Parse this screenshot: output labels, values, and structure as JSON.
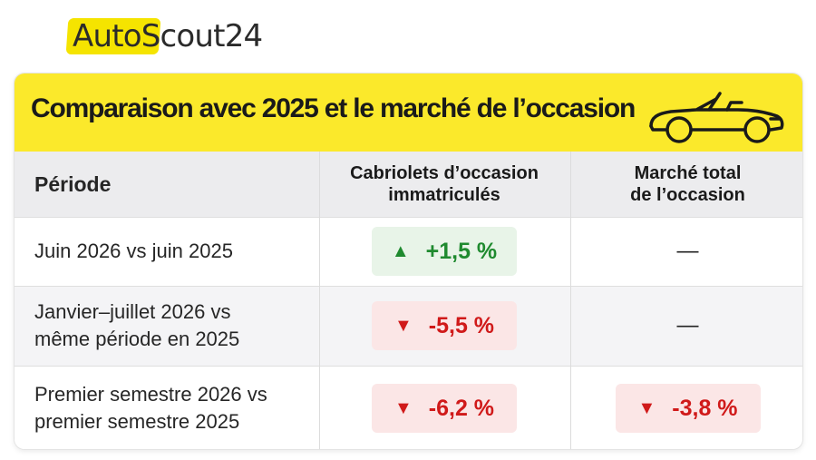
{
  "logo": {
    "part1": "Auto",
    "part2": "Scout24"
  },
  "title": "Comparaison avec 2025 et le marché de l’occasion",
  "table": {
    "headers": {
      "period": "Période",
      "used_convertibles_line1": "Cabriolets d’occasion",
      "used_convertibles_line2": "immatriculés",
      "total_market_line1": "Marché total",
      "total_market_line2": "de l’occasion"
    },
    "rows": [
      {
        "period_line1": "Juin 2026 vs juin 2025",
        "period_line2": "",
        "convertibles": {
          "value": "+1,5 %",
          "trend": "up"
        },
        "total_market": {
          "value": "—"
        }
      },
      {
        "period_line1": "Janvier–juillet 2026 vs",
        "period_line2": "même période en 2025",
        "convertibles": {
          "value": "-5,5 %",
          "trend": "down"
        },
        "total_market": {
          "value": "—"
        }
      },
      {
        "period_line1": "Premier semestre 2026 vs",
        "period_line2": "premier semestre 2025",
        "convertibles": {
          "value": "-6,2 %",
          "trend": "down"
        },
        "total_market": {
          "value": "-3,8 %",
          "trend": "down"
        }
      }
    ]
  },
  "icons": {
    "car": "convertible-car-icon",
    "up": "triangle-up-icon",
    "down": "triangle-down-icon"
  },
  "colors": {
    "brand_yellow": "#fbe92b",
    "up_green": "#1f8a2f",
    "down_red": "#d01a1a"
  }
}
